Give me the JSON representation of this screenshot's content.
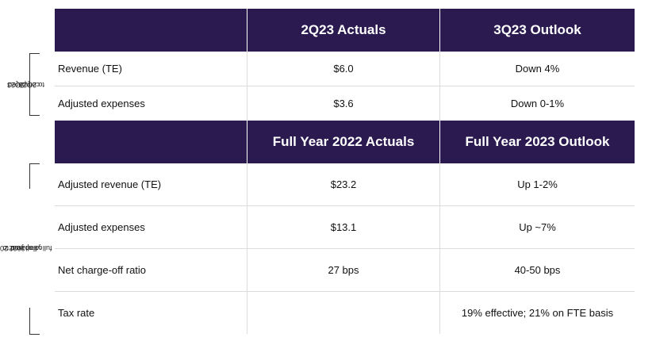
{
  "side_labels": {
    "quarter": "3Q23 compared to 2Q23",
    "quarter_lines": [
      "3Q23",
      "compared",
      "to 2Q23"
    ],
    "full_year_lines": [
      "Full year 2023",
      "compared to",
      "full year 2022"
    ]
  },
  "section_quarter": {
    "header": [
      "",
      "2Q23 Actuals",
      "3Q23 Outlook"
    ],
    "rows": [
      [
        "Revenue (TE)",
        "$6.0",
        "Down 4%"
      ],
      [
        "Adjusted expenses",
        "$3.6",
        "Down 0-1%"
      ]
    ]
  },
  "section_year": {
    "header": [
      "",
      "Full Year 2022 Actuals",
      "Full Year 2023 Outlook"
    ],
    "rows": [
      [
        "Adjusted revenue (TE)",
        "$23.2",
        "Up 1-2%"
      ],
      [
        "Adjusted expenses",
        "$13.1",
        "Up ~7%"
      ],
      [
        "Net charge-off ratio",
        "27 bps",
        "40-50 bps"
      ],
      [
        "Tax rate",
        "",
        "19% effective; 21% on FTE basis"
      ]
    ]
  }
}
